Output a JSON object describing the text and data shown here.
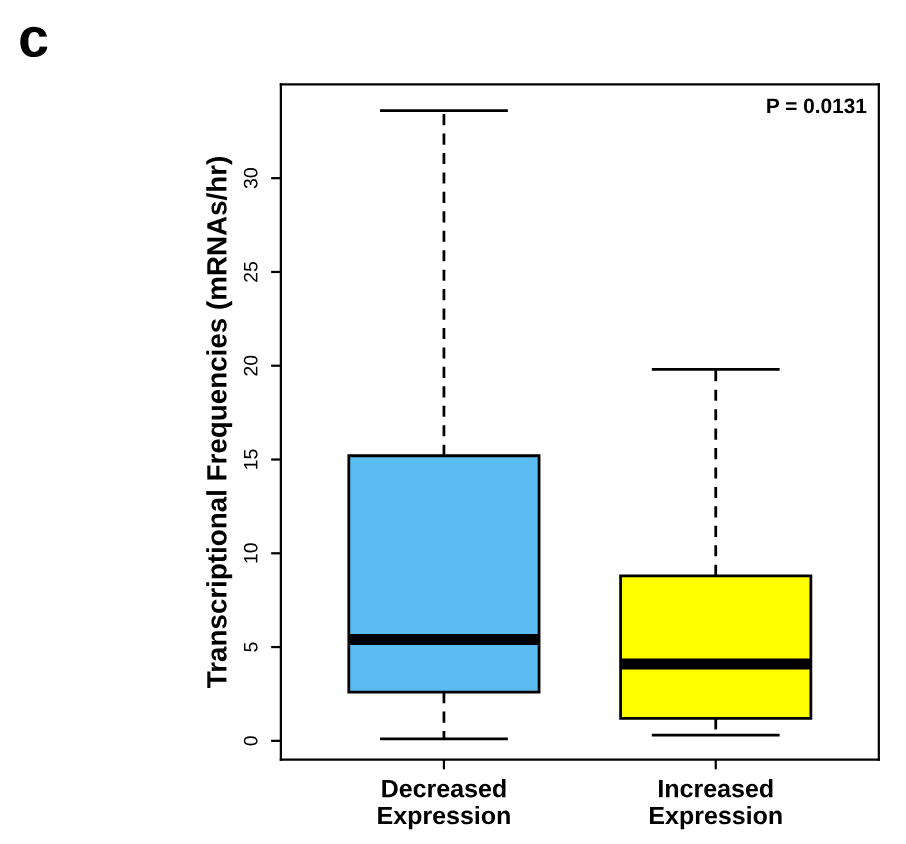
{
  "chart_data": {
    "type": "box",
    "title": "c",
    "ylabel": "Transcriptional Frequencies (mRNAs/hr)",
    "categories": [
      "Decreased\nExpression",
      "Increased\nExpression"
    ],
    "boxes": [
      {
        "low": 0.1,
        "q1": 2.6,
        "median": 5.4,
        "q3": 15.2,
        "high": 33.6
      },
      {
        "low": 0.3,
        "q1": 1.2,
        "median": 4.1,
        "q3": 8.8,
        "high": 19.8
      }
    ],
    "colors": [
      "#5bbcf2",
      "#ffff00"
    ],
    "ylim": [
      -1,
      35
    ],
    "yticks": [
      0,
      5,
      10,
      15,
      20,
      25,
      30
    ],
    "annotations": [
      "P = 0.0131"
    ],
    "grid": false
  }
}
